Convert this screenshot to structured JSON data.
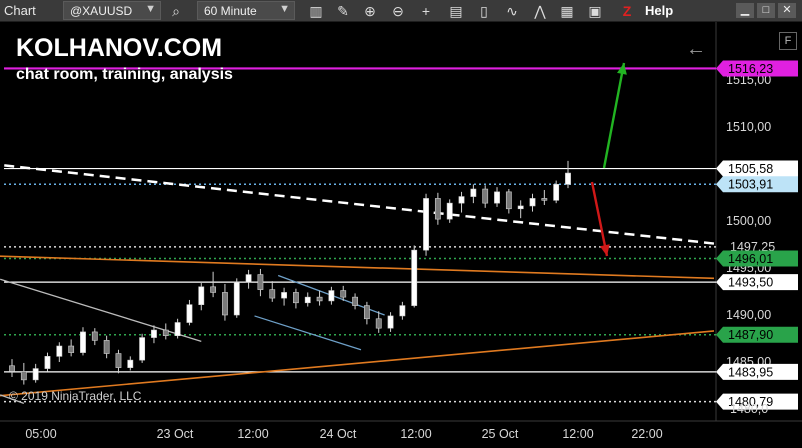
{
  "toolbar": {
    "chart_label": "Chart",
    "instrument": "@XAUUSD",
    "interval": "60 Minute",
    "help": "Help",
    "icons": [
      "search-icon",
      "bar-type-icon",
      "pencil-icon",
      "zoom-in-icon",
      "zoom-out-icon",
      "crosshair-icon",
      "stack-icon",
      "candlestick-icon",
      "indicator-icon",
      "strategy-icon",
      "properties-icon",
      "z-icon"
    ]
  },
  "overlay": {
    "brand": "KOLHANOV.COM",
    "tagline": "chat room, training, analysis",
    "copyright": "© 2019 NinjaTrader, LLC"
  },
  "colors": {
    "magenta": "#e020e0",
    "white_line": "#ffffff",
    "blue_dotted": "#6ab4e8",
    "green_dotted": "#2fa84f",
    "orange": "#e07a20",
    "steel_blue": "#6ea0c8",
    "green_arrow": "#22b422",
    "red_arrow": "#d01818"
  },
  "chart_data": {
    "type": "candlestick",
    "instrument": "@XAUUSD",
    "interval": "60 Minute",
    "ylim": [
      1479,
      1521
    ],
    "y_ticks": [
      1485,
      1490,
      1495,
      1500,
      1505,
      1510,
      1515
    ],
    "y_tick_labels": [
      "1485,00",
      "1490,00",
      "1495,00",
      "1500,00",
      "1505,00",
      "1510,00",
      "1515,00"
    ],
    "x_tick_labels": [
      "05:00",
      "23 Oct",
      "12:00",
      "24 Oct",
      "12:00",
      "25 Oct",
      "12:00",
      "22:00"
    ],
    "price_labels": [
      {
        "name": "magenta-level",
        "value": 1516.23,
        "text": "1516,23",
        "style": "magenta"
      },
      {
        "name": "resistance",
        "value": 1505.58,
        "text": "1505,58",
        "style": "white"
      },
      {
        "name": "last-price",
        "value": 1503.91,
        "text": "1503,91",
        "style": "blue"
      },
      {
        "name": "dashed-trend",
        "value": 1497.25,
        "text": "1497,25",
        "style": "plain"
      },
      {
        "name": "green-level",
        "value": 1496.01,
        "text": "1496,01",
        "style": "green"
      },
      {
        "name": "support-1",
        "value": 1493.5,
        "text": "1493,50",
        "style": "white"
      },
      {
        "name": "support-2",
        "value": 1487.9,
        "text": "1487,90",
        "style": "green"
      },
      {
        "name": "support-3",
        "value": 1483.95,
        "text": "1483,95",
        "style": "white"
      },
      {
        "name": "support-4",
        "value": 1480.79,
        "text": "1480,79",
        "style": "white"
      },
      {
        "name": "bottom-tick",
        "value": 1480.0,
        "text": "1480,0",
        "style": "plain"
      }
    ],
    "candles": [
      {
        "o": 1484.6,
        "h": 1485.3,
        "l": 1483.4,
        "c": 1484.0
      },
      {
        "o": 1484.0,
        "h": 1484.9,
        "l": 1482.6,
        "c": 1483.1
      },
      {
        "o": 1483.1,
        "h": 1484.8,
        "l": 1482.8,
        "c": 1484.3
      },
      {
        "o": 1484.3,
        "h": 1486.0,
        "l": 1484.0,
        "c": 1485.6
      },
      {
        "o": 1485.6,
        "h": 1487.1,
        "l": 1485.0,
        "c": 1486.7
      },
      {
        "o": 1486.7,
        "h": 1487.4,
        "l": 1485.6,
        "c": 1486.0
      },
      {
        "o": 1486.0,
        "h": 1488.7,
        "l": 1485.7,
        "c": 1488.2
      },
      {
        "o": 1488.2,
        "h": 1488.6,
        "l": 1486.8,
        "c": 1487.3
      },
      {
        "o": 1487.3,
        "h": 1487.8,
        "l": 1485.4,
        "c": 1485.9
      },
      {
        "o": 1485.9,
        "h": 1486.3,
        "l": 1483.8,
        "c": 1484.4
      },
      {
        "o": 1484.4,
        "h": 1485.6,
        "l": 1484.1,
        "c": 1485.2
      },
      {
        "o": 1485.2,
        "h": 1488.0,
        "l": 1484.9,
        "c": 1487.6
      },
      {
        "o": 1487.6,
        "h": 1488.9,
        "l": 1487.0,
        "c": 1488.4
      },
      {
        "o": 1488.4,
        "h": 1489.1,
        "l": 1487.4,
        "c": 1487.8
      },
      {
        "o": 1487.8,
        "h": 1489.6,
        "l": 1487.5,
        "c": 1489.2
      },
      {
        "o": 1489.2,
        "h": 1491.6,
        "l": 1488.9,
        "c": 1491.1
      },
      {
        "o": 1491.1,
        "h": 1493.4,
        "l": 1490.5,
        "c": 1493.0
      },
      {
        "o": 1493.0,
        "h": 1494.6,
        "l": 1491.9,
        "c": 1492.4
      },
      {
        "o": 1492.4,
        "h": 1493.3,
        "l": 1489.4,
        "c": 1490.0
      },
      {
        "o": 1490.0,
        "h": 1493.9,
        "l": 1489.7,
        "c": 1493.5
      },
      {
        "o": 1493.5,
        "h": 1494.8,
        "l": 1492.8,
        "c": 1494.3
      },
      {
        "o": 1494.3,
        "h": 1494.9,
        "l": 1492.0,
        "c": 1492.7
      },
      {
        "o": 1492.7,
        "h": 1493.6,
        "l": 1491.4,
        "c": 1491.8
      },
      {
        "o": 1491.8,
        "h": 1492.9,
        "l": 1491.0,
        "c": 1492.4
      },
      {
        "o": 1492.4,
        "h": 1492.8,
        "l": 1490.7,
        "c": 1491.3
      },
      {
        "o": 1491.3,
        "h": 1492.4,
        "l": 1490.9,
        "c": 1491.9
      },
      {
        "o": 1491.9,
        "h": 1492.6,
        "l": 1491.0,
        "c": 1491.5
      },
      {
        "o": 1491.5,
        "h": 1493.0,
        "l": 1491.1,
        "c": 1492.6
      },
      {
        "o": 1492.6,
        "h": 1493.1,
        "l": 1491.5,
        "c": 1491.9
      },
      {
        "o": 1491.9,
        "h": 1492.3,
        "l": 1490.6,
        "c": 1491.0
      },
      {
        "o": 1491.0,
        "h": 1491.4,
        "l": 1489.0,
        "c": 1489.6
      },
      {
        "o": 1489.6,
        "h": 1490.4,
        "l": 1488.1,
        "c": 1488.6
      },
      {
        "o": 1488.6,
        "h": 1490.3,
        "l": 1488.2,
        "c": 1489.9
      },
      {
        "o": 1489.9,
        "h": 1491.4,
        "l": 1489.5,
        "c": 1491.0
      },
      {
        "o": 1491.0,
        "h": 1497.4,
        "l": 1490.8,
        "c": 1496.9
      },
      {
        "o": 1496.9,
        "h": 1502.9,
        "l": 1496.3,
        "c": 1502.4
      },
      {
        "o": 1502.4,
        "h": 1503.0,
        "l": 1499.6,
        "c": 1500.2
      },
      {
        "o": 1500.2,
        "h": 1502.3,
        "l": 1499.8,
        "c": 1501.9
      },
      {
        "o": 1501.9,
        "h": 1503.1,
        "l": 1500.9,
        "c": 1502.6
      },
      {
        "o": 1502.6,
        "h": 1503.9,
        "l": 1501.9,
        "c": 1503.4
      },
      {
        "o": 1503.4,
        "h": 1503.8,
        "l": 1501.4,
        "c": 1501.9
      },
      {
        "o": 1501.9,
        "h": 1503.6,
        "l": 1501.5,
        "c": 1503.1
      },
      {
        "o": 1503.1,
        "h": 1503.4,
        "l": 1500.8,
        "c": 1501.3
      },
      {
        "o": 1501.3,
        "h": 1502.2,
        "l": 1500.3,
        "c": 1501.6
      },
      {
        "o": 1501.6,
        "h": 1502.9,
        "l": 1501.0,
        "c": 1502.4
      },
      {
        "o": 1502.4,
        "h": 1503.3,
        "l": 1501.7,
        "c": 1502.2
      },
      {
        "o": 1502.2,
        "h": 1504.3,
        "l": 1501.9,
        "c": 1503.9
      },
      {
        "o": 1503.9,
        "h": 1506.4,
        "l": 1503.5,
        "c": 1505.1
      }
    ]
  }
}
